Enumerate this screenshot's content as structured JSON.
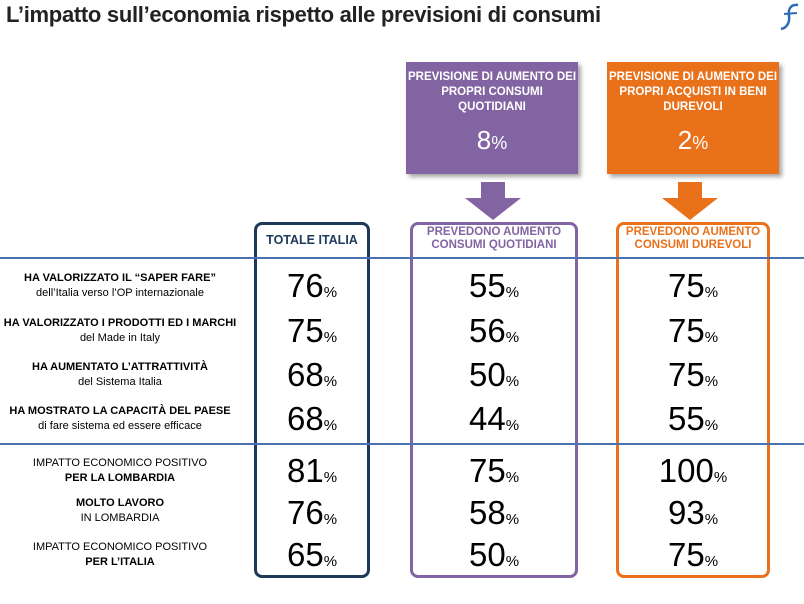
{
  "title": "L’impatto sull’economia rispetto alle previsioni di consumi",
  "callouts": {
    "daily": {
      "text": "PREVISIONE DI AUMENTO DEI PROPRI CONSUMI QUOTIDIANI",
      "value": "8",
      "unit": "%",
      "color": "#8264a2"
    },
    "durable": {
      "text": "PREVISIONE DI AUMENTO DEI PROPRI ACQUISTI IN BENI DUREVOLI",
      "value": "2",
      "unit": "%",
      "color": "#e8711a"
    }
  },
  "columns": {
    "total": {
      "label": "TOTALE ITALIA",
      "color": "#1d3a5a"
    },
    "daily": {
      "label": "PREVEDONO AUMENTO CONSUMI QUOTIDIANI",
      "color": "#8264a2"
    },
    "durable": {
      "label": "PREVEDONO AUMENTO CONSUMI  DUREVOLI",
      "color": "#e8711a"
    }
  },
  "rows": [
    {
      "bold": "HA VALORIZZATO IL “SAPER FARE”",
      "normal": "dell’Italia verso l’OP internazionale",
      "total": "76",
      "daily": "55",
      "durable": "75"
    },
    {
      "bold": "HA VALORIZZATO I PRODOTTI ED I MARCHI",
      "normal": " del Made in Italy",
      "total": "75",
      "daily": "56",
      "durable": "75"
    },
    {
      "bold": "HA AUMENTATO L’ATTRATTIVITÀ",
      "normal": "del Sistema Italia",
      "total": "68",
      "daily": "50",
      "durable": "75"
    },
    {
      "bold": "HA MOSTRATO LA CAPACITÀ DEL PAESE",
      "normal": "di fare sistema ed essere efficace",
      "total": "68",
      "daily": "44",
      "durable": "55"
    },
    {
      "line1": "IMPATTO ECONOMICO POSITIVO",
      "bold": "PER LA LOMBARDIA",
      "total": "81",
      "daily": "75",
      "durable": "100"
    },
    {
      "bold": "MOLTO LAVORO",
      "line2": "IN LOMBARDIA",
      "total": "76",
      "daily": "58",
      "durable": "93"
    },
    {
      "line1": "IMPATTO ECONOMICO POSITIVO",
      "bold": "PER L’ITALIA",
      "total": "65",
      "daily": "50",
      "durable": "75"
    }
  ],
  "unit": "%"
}
